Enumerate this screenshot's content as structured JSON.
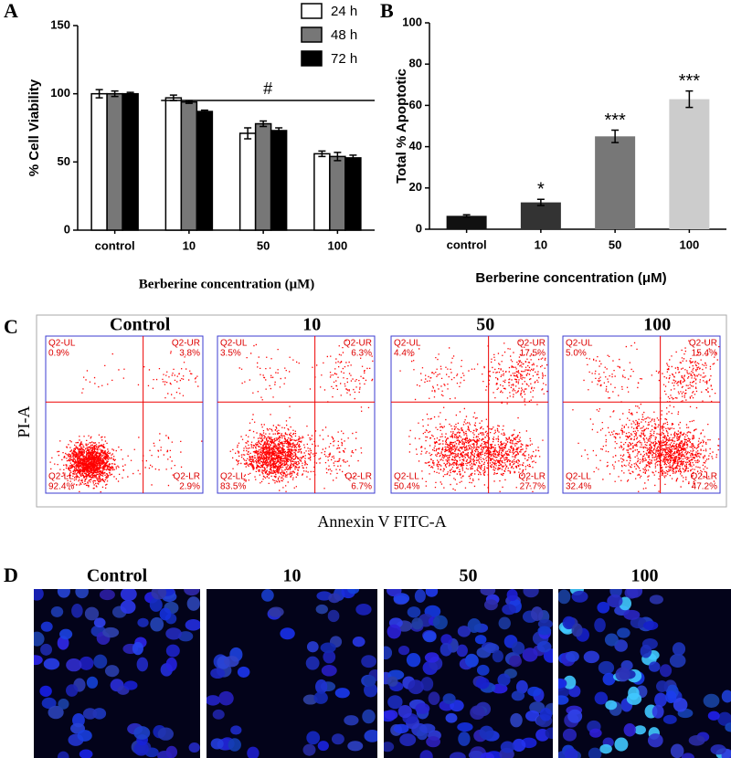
{
  "chart_data": [
    {
      "type": "grouped-bar",
      "panel_label": "A",
      "y_label": "% Cell Viability",
      "x_label": "Berberine concentration (μM)",
      "categories": [
        "control",
        "10",
        "50",
        "100"
      ],
      "series": [
        {
          "name": "24 h",
          "color": "#ffffff",
          "values": [
            100,
            97,
            71,
            56
          ],
          "errors": [
            3,
            2,
            4,
            2
          ]
        },
        {
          "name": "48 h",
          "color": "#777777",
          "values": [
            100,
            94,
            78,
            54
          ],
          "errors": [
            2,
            1,
            2,
            3
          ]
        },
        {
          "name": "72 h",
          "color": "#000000",
          "values": [
            100,
            87,
            73,
            53
          ],
          "errors": [
            1,
            1,
            2,
            2
          ]
        }
      ],
      "ylim": [
        0,
        150
      ],
      "yticks": [
        0,
        50,
        100,
        150
      ],
      "annotation": "#"
    },
    {
      "type": "bar",
      "panel_label": "B",
      "y_label": "Total % Apoptotic",
      "x_label": "Berberine concentration (μM)",
      "categories": [
        "control",
        "10",
        "50",
        "100"
      ],
      "values": [
        6.5,
        13,
        45,
        63
      ],
      "errors": [
        0.5,
        1.5,
        3,
        4
      ],
      "colors": [
        "#111111",
        "#333333",
        "#777777",
        "#cccccc"
      ],
      "annotations": [
        null,
        "*",
        "***",
        "***"
      ],
      "ylim": [
        0,
        100
      ],
      "yticks": [
        0,
        20,
        40,
        60,
        80,
        100
      ]
    }
  ],
  "flow_panel": {
    "label": "C",
    "y_label": "PI-A",
    "x_label": "Annexin V FITC-A",
    "plots": [
      {
        "title": "Control",
        "quadrants": [
          {
            "name": "Q2-UL",
            "percent": "0.9%"
          },
          {
            "name": "Q2-UR",
            "percent": "3.8%"
          },
          {
            "name": "Q2-LL",
            "percent": "92.4%"
          },
          {
            "name": "Q2-LR",
            "percent": "2.9%"
          }
        ]
      },
      {
        "title": "10",
        "quadrants": [
          {
            "name": "Q2-UL",
            "percent": "3.5%"
          },
          {
            "name": "Q2-UR",
            "percent": "6.3%"
          },
          {
            "name": "Q2-LL",
            "percent": "83.5%"
          },
          {
            "name": "Q2-LR",
            "percent": "6.7%"
          }
        ]
      },
      {
        "title": "50",
        "quadrants": [
          {
            "name": "Q2-UL",
            "percent": "4.4%"
          },
          {
            "name": "Q2-UR",
            "percent": "17.5%"
          },
          {
            "name": "Q2-LL",
            "percent": "50.4%"
          },
          {
            "name": "Q2-LR",
            "percent": "27.7%"
          }
        ]
      },
      {
        "title": "100",
        "quadrants": [
          {
            "name": "Q2-UL",
            "percent": "5.0%"
          },
          {
            "name": "Q2-UR",
            "percent": "15.4%"
          },
          {
            "name": "Q2-LL",
            "percent": "32.4%"
          },
          {
            "name": "Q2-LR",
            "percent": "47.2%"
          }
        ]
      }
    ]
  },
  "image_panel": {
    "label": "D",
    "titles": [
      "Control",
      "10",
      "50",
      "100"
    ]
  }
}
